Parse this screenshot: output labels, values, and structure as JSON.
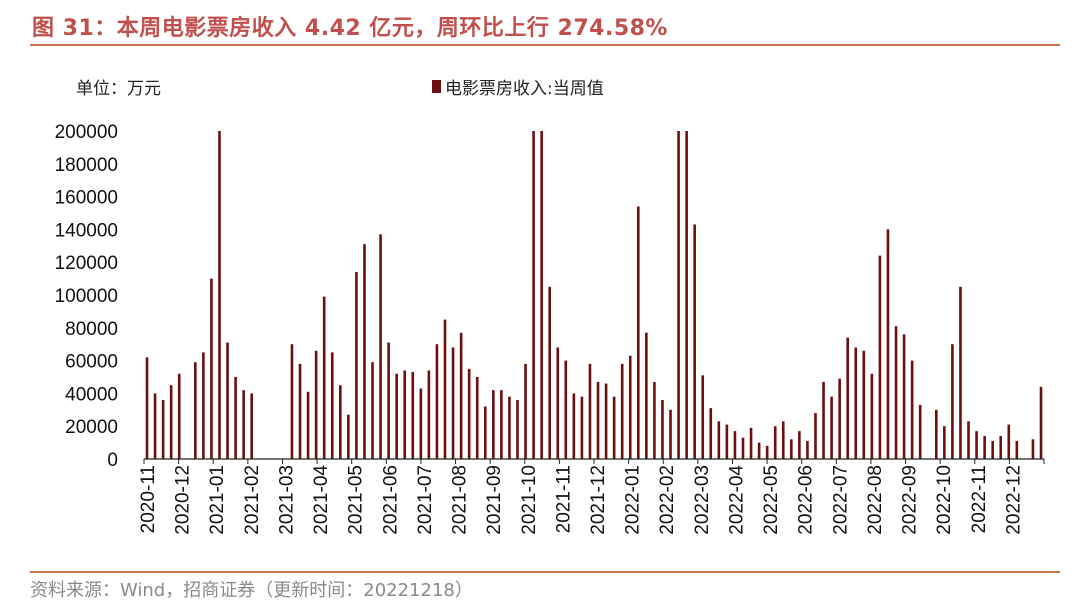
{
  "title": "图 31：本周电影票房收入 4.42 亿元，周环比上行 274.58%",
  "unit_label": "单位：万元",
  "source": "资料来源：Wind，招商证券（更新时间：20221218）",
  "colors": {
    "bar": "#6b0f0f",
    "title": "#c0504d",
    "rule": "#c9734d"
  },
  "chart_data": {
    "type": "bar",
    "title": "本周电影票房收入 4.42 亿元，周环比上行 274.58%",
    "ylabel": "单位：万元",
    "ylim": [
      0,
      200000
    ],
    "yticks": [
      0,
      20000,
      40000,
      60000,
      80000,
      100000,
      120000,
      140000,
      160000,
      180000,
      200000
    ],
    "legend": "电影票房收入:当周值",
    "month_labels": [
      "2020-11",
      "2020-12",
      "2021-01",
      "2021-02",
      "2021-03",
      "2021-04",
      "2021-05",
      "2021-06",
      "2021-07",
      "2021-08",
      "2021-09",
      "2021-10",
      "2021-11",
      "2021-12",
      "2022-01",
      "2022-02",
      "2022-03",
      "2022-04",
      "2022-05",
      "2022-06",
      "2022-07",
      "2022-08",
      "2022-09",
      "2022-10",
      "2022-11",
      "2022-12"
    ],
    "series": [
      {
        "name": "电影票房收入:当周值",
        "values": [
          62000,
          40000,
          36000,
          45000,
          52000,
          0,
          59000,
          65000,
          110000,
          200000,
          71000,
          50000,
          42000,
          40000,
          0,
          0,
          0,
          0,
          70000,
          58000,
          41000,
          66000,
          99000,
          65000,
          45000,
          27000,
          114000,
          131000,
          59000,
          137000,
          71000,
          52000,
          54000,
          53000,
          43000,
          54000,
          70000,
          85000,
          68000,
          77000,
          55000,
          50000,
          32000,
          42000,
          42000,
          38000,
          36000,
          58000,
          200000,
          200000,
          105000,
          68000,
          60000,
          40000,
          38000,
          58000,
          47000,
          46000,
          38000,
          58000,
          63000,
          154000,
          77000,
          47000,
          36000,
          30000,
          200000,
          200000,
          143000,
          51000,
          31000,
          23000,
          21000,
          17000,
          13000,
          19000,
          10000,
          8000,
          20000,
          23000,
          12000,
          17000,
          11000,
          28000,
          47000,
          38000,
          49000,
          74000,
          68000,
          66000,
          52000,
          124000,
          140000,
          81000,
          76000,
          60000,
          33000,
          0,
          30000,
          20000,
          70000,
          105000,
          23000,
          17000,
          14000,
          11000,
          14000,
          21000,
          11000,
          0,
          12000,
          44000
        ]
      }
    ]
  }
}
